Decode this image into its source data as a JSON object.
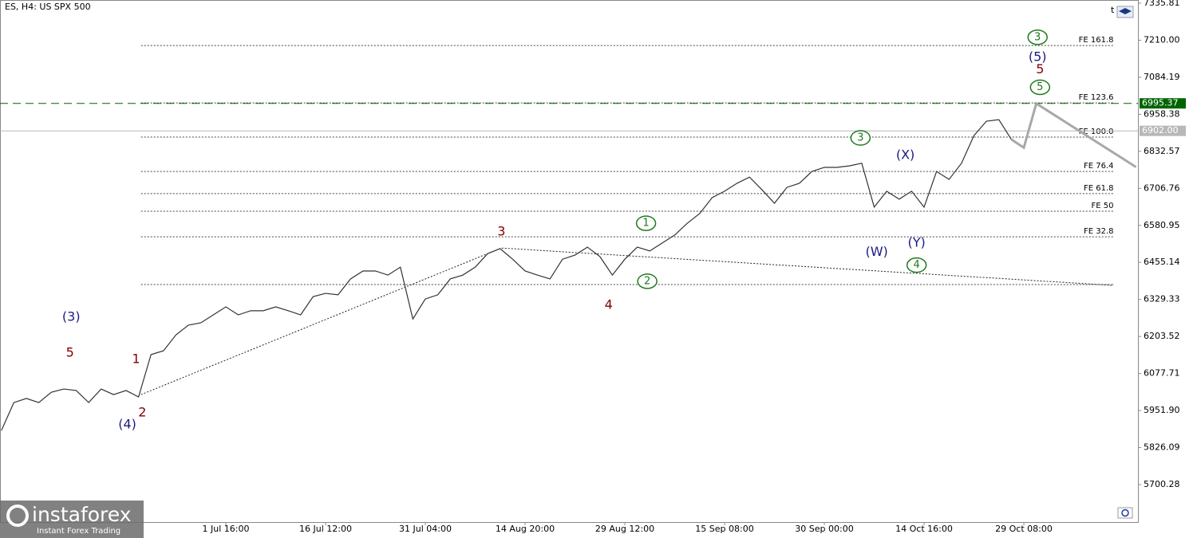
{
  "chart_data": {
    "type": "line",
    "title": "ES, H4:  US SPX 500",
    "corner_label": "t",
    "categories": [
      null,
      null,
      null,
      null,
      null,
      null,
      null,
      null,
      null,
      null,
      null,
      null,
      null,
      null,
      null,
      null,
      null,
      null,
      "1 Jul 16:00",
      null,
      null,
      null,
      null,
      null,
      null,
      null,
      "16 Jul 12:00",
      null,
      null,
      null,
      null,
      null,
      null,
      null,
      "31 Jul 04:00",
      null,
      null,
      null,
      null,
      null,
      null,
      null,
      "14 Aug 20:00",
      null,
      null,
      null,
      null,
      null,
      null,
      null,
      "29 Aug 12:00",
      null,
      null,
      null,
      null,
      null,
      null,
      null,
      "15 Sep 08:00",
      null,
      null,
      null,
      null,
      null,
      null,
      null,
      "30 Sep 00:00",
      null,
      null,
      null,
      null,
      null,
      null,
      null,
      "14 Oct 16:00",
      null,
      null,
      null,
      null,
      null,
      null,
      null,
      "29 Oct 08:00",
      null,
      null,
      null,
      null,
      null,
      null,
      null,
      null,
      null
    ],
    "series": [
      {
        "color": "#333333",
        "values": [
          5884,
          5979,
          5993,
          5979,
          6014,
          6025,
          6020,
          5979,
          6025,
          6006,
          6020,
          5998,
          6142,
          6155,
          6209,
          6242,
          6250,
          6277,
          6304,
          6277,
          6291,
          6291,
          6304,
          6291,
          6277,
          6339,
          6350,
          6345,
          6399,
          6426,
          6426,
          6412,
          6439,
          6263,
          6331,
          6345,
          6399,
          6412,
          6439,
          6485,
          6502,
          6466,
          6426,
          6412,
          6399,
          6466,
          6480,
          6507,
          6475,
          6412,
          6466,
          6507,
          6494,
          6521,
          6548,
          6588,
          6621,
          6675,
          6697,
          6724,
          6745,
          6702,
          6656,
          6710,
          6724,
          6764,
          6778,
          6778,
          6783,
          6792,
          6643,
          6697,
          6670,
          6697,
          6643,
          6764,
          6737,
          6792,
          6886,
          6935,
          6940,
          6873,
          null,
          null,
          null,
          null,
          null,
          null,
          null,
          null,
          null,
          null
        ]
      },
      {
        "color": "#a8a8a8",
        "values": [
          null,
          null,
          null,
          null,
          null,
          null,
          null,
          null,
          null,
          null,
          null,
          null,
          null,
          null,
          null,
          null,
          null,
          null,
          null,
          null,
          null,
          null,
          null,
          null,
          null,
          null,
          null,
          null,
          null,
          null,
          null,
          null,
          null,
          null,
          null,
          null,
          null,
          null,
          null,
          null,
          null,
          null,
          null,
          null,
          null,
          null,
          null,
          null,
          null,
          null,
          null,
          null,
          null,
          null,
          null,
          null,
          null,
          null,
          null,
          null,
          null,
          null,
          null,
          null,
          null,
          null,
          null,
          null,
          null,
          null,
          null,
          null,
          null,
          null,
          null,
          null,
          null,
          null,
          null,
          null,
          null,
          6873,
          6845,
          6995,
          6968,
          6941,
          6914,
          6887,
          6860,
          6833,
          6806,
          6779
        ]
      }
    ],
    "ylim": [
      5573,
      7346.6
    ],
    "yticks": [
      7335.81,
      {
        "value": 7210,
        "label": "7210.00"
      },
      7084.19,
      6958.38,
      6832.57,
      6706.76,
      6580.95,
      6455.14,
      6329.33,
      6203.52,
      6077.71,
      {
        "value": 5951.9,
        "label": "5951.90"
      },
      5826.09,
      5700.28
    ],
    "price_lines": [
      {
        "value": 6995.37,
        "color": "#006400",
        "dashed": true
      },
      {
        "value": 6902,
        "label": "6902.00",
        "color": "#b8b8b8",
        "dashed": false
      }
    ],
    "fibonacci": {
      "x": [
        11.2,
        89.2
      ],
      "levels": [
        {
          "label": "FE 161.8",
          "value": 7192
        },
        {
          "label": "FE 123.6",
          "value": 6997
        },
        {
          "label": "FE 100.0",
          "value": 6881
        },
        {
          "label": "FE 76.4",
          "value": 6764
        },
        {
          "label": "FE 61.8",
          "value": 6689
        },
        {
          "label": "FE 50",
          "value": 6629
        },
        {
          "label": "FE 32.8",
          "value": 6542
        },
        {
          "label": null,
          "value": 6380
        }
      ]
    },
    "trendline": {
      "x": [
        11.2,
        40.1,
        89.2
      ],
      "values": [
        6006,
        6504,
        6377
      ]
    },
    "annotations": [
      {
        "text": "(3)",
        "x": 5.6,
        "y": 6269,
        "color": "#1a1a80",
        "circled": false
      },
      {
        "text": "5",
        "x": 5.5,
        "y": 6147,
        "color": "#800000",
        "circled": false
      },
      {
        "text": "1",
        "x": 10.8,
        "y": 6125,
        "color": "#800000",
        "circled": false
      },
      {
        "text": "2",
        "x": 11.3,
        "y": 5944,
        "color": "#800000",
        "circled": false
      },
      {
        "text": "(4)",
        "x": 10.1,
        "y": 5903,
        "color": "#1a1a80",
        "circled": false
      },
      {
        "text": "3",
        "x": 40.1,
        "y": 6559,
        "color": "#800000",
        "circled": false
      },
      {
        "text": "4",
        "x": 48.7,
        "y": 6310,
        "color": "#800000",
        "circled": false
      },
      {
        "text": "1",
        "x": 51.7,
        "y": 6588,
        "color": "#1e7a1e",
        "circled": true
      },
      {
        "text": "2",
        "x": 51.8,
        "y": 6391,
        "color": "#1e7a1e",
        "circled": true
      },
      {
        "text": "3",
        "x": 68.9,
        "y": 6878,
        "color": "#1e7a1e",
        "circled": true
      },
      {
        "text": "(X)",
        "x": 72.5,
        "y": 6819,
        "color": "#1a1a80",
        "circled": false
      },
      {
        "text": "(W)",
        "x": 70.2,
        "y": 6489,
        "color": "#1a1a80",
        "circled": false
      },
      {
        "text": "(Y)",
        "x": 73.4,
        "y": 6521,
        "color": "#1a1a80",
        "circled": false
      },
      {
        "text": "4",
        "x": 73.4,
        "y": 6446,
        "color": "#1e7a1e",
        "circled": true
      },
      {
        "text": "3",
        "x": 83.1,
        "y": 7220,
        "color": "#1e7a1e",
        "circled": true
      },
      {
        "text": "(5)",
        "x": 83.1,
        "y": 7152,
        "color": "#1a1a80",
        "circled": false
      },
      {
        "text": "5",
        "x": 83.3,
        "y": 7109,
        "color": "#800000",
        "circled": false
      },
      {
        "text": "5",
        "x": 83.3,
        "y": 7050,
        "color": "#1e7a1e",
        "circled": true
      }
    ]
  },
  "watermark": {
    "brand": "instaforex",
    "tagline": "Instant Forex Trading"
  }
}
